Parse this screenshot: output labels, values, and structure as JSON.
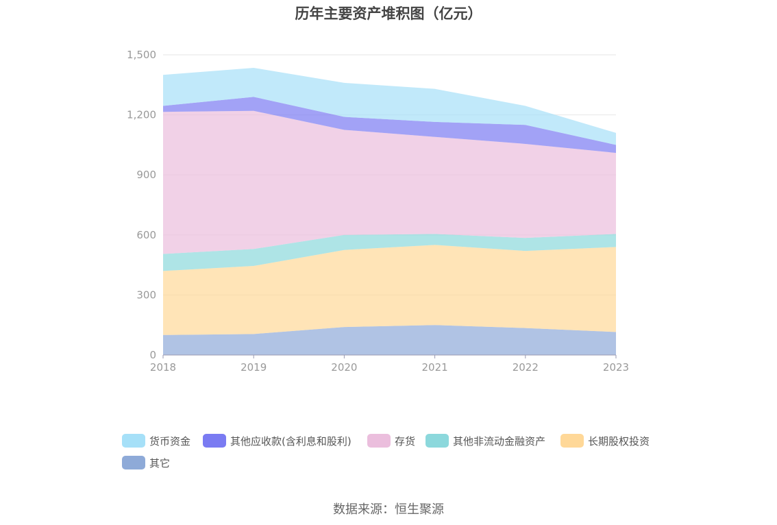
{
  "chart_data": {
    "type": "area",
    "stacked": true,
    "title": "历年主要资产堆积图（亿元）",
    "x": [
      "2018",
      "2019",
      "2020",
      "2021",
      "2022",
      "2023"
    ],
    "ylim": [
      0,
      1500
    ],
    "yticks": [
      "0",
      "300",
      "600",
      "900",
      "1,200",
      "1,500"
    ],
    "ytick_values": [
      0,
      300,
      600,
      900,
      1200,
      1500
    ],
    "grid": true,
    "legend_position": "bottom",
    "series": [
      {
        "name": "其它",
        "color": "#8eaad8",
        "values": [
          100,
          105,
          140,
          150,
          135,
          115
        ]
      },
      {
        "name": "长期股权投资",
        "color": "#ffd898",
        "values": [
          320,
          340,
          385,
          400,
          385,
          425
        ]
      },
      {
        "name": "其他非流动金融资产",
        "color": "#8cd8dc",
        "values": [
          85,
          85,
          75,
          55,
          65,
          65
        ]
      },
      {
        "name": "存货",
        "color": "#ebbedd",
        "values": [
          710,
          690,
          525,
          485,
          470,
          405
        ]
      },
      {
        "name": "其他应收款(含利息和股利)",
        "color": "#7a7bf2",
        "values": [
          30,
          70,
          65,
          75,
          95,
          40
        ]
      },
      {
        "name": "货币资金",
        "color": "#a6e0f8",
        "values": [
          155,
          145,
          170,
          165,
          95,
          60
        ]
      }
    ]
  },
  "legend_order": [
    5,
    4,
    3,
    2,
    1,
    0
  ],
  "source": "数据来源：恒生聚源"
}
